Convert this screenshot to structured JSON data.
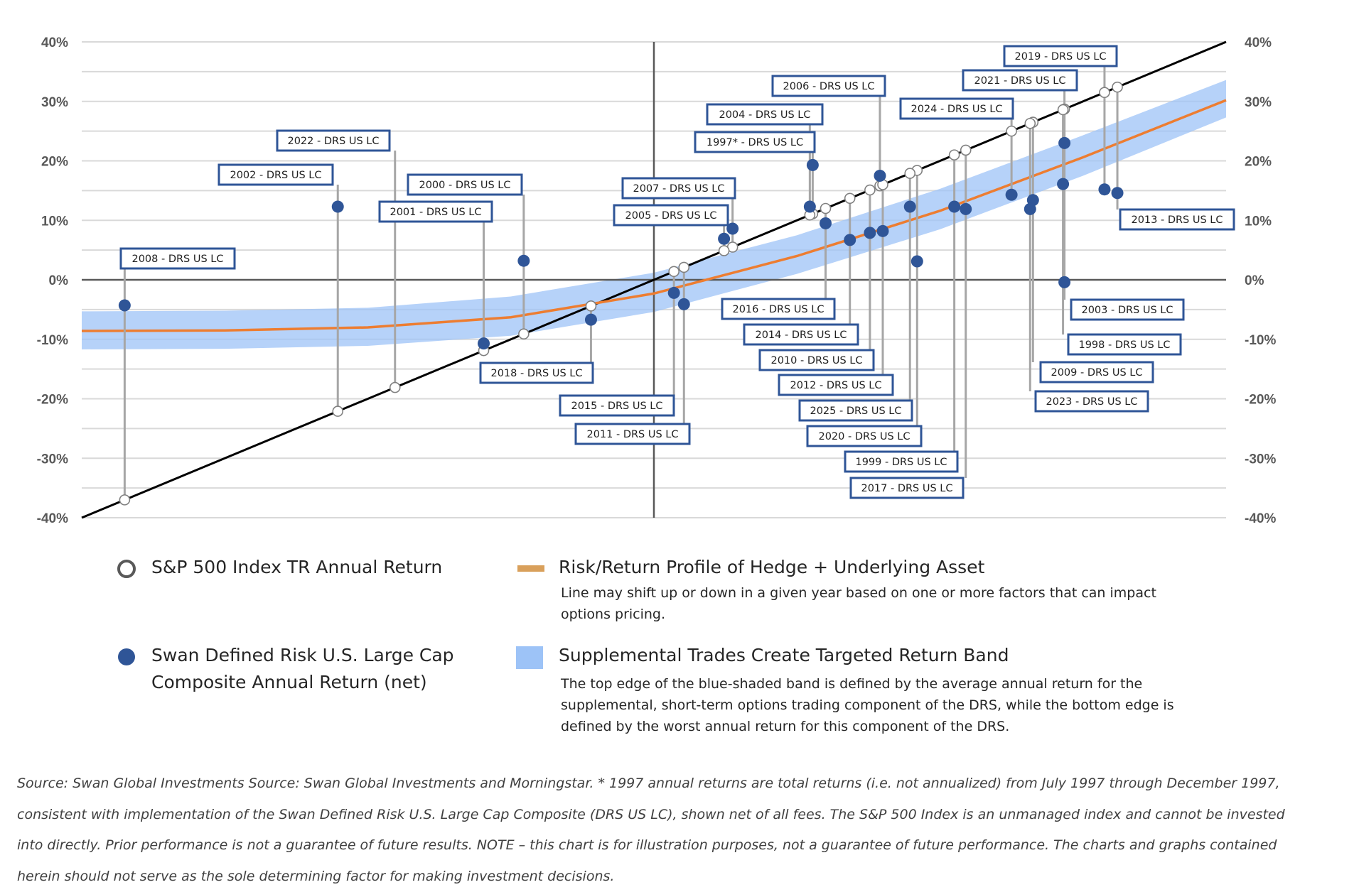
{
  "chart_data": {
    "type": "scatter",
    "xlim": [
      -40,
      40
    ],
    "ylim": [
      -40,
      40
    ],
    "y_ticks": [
      "40%",
      "30%",
      "20%",
      "10%",
      "0%",
      "-10%",
      "-20%",
      "-30%",
      "-40%"
    ],
    "grid": true,
    "legend_position": "bottom",
    "series": [
      {
        "name": "S&P 500 Index TR Annual Return"
      },
      {
        "name": "Swan Defined Risk U.S. Large Cap Composite Annual Return (net)"
      },
      {
        "name": "Risk/Return Profile of Hedge + Underlying Asset"
      },
      {
        "name": "Supplemental Trades Create Targeted Return Band"
      }
    ],
    "points": [
      {
        "label": "2008 - DRS US LC",
        "sp500": -37.0,
        "drs": -4.3
      },
      {
        "label": "2022 - DRS US LC",
        "sp500": -18.1,
        "drs": 12.3
      },
      {
        "label": "2002 - DRS US LC",
        "sp500": -22.1,
        "drs": 12.3
      },
      {
        "label": "2001 - DRS US LC",
        "sp500": -11.9,
        "drs": -10.7
      },
      {
        "label": "2000 - DRS US LC",
        "sp500": -9.1,
        "drs": 3.2
      },
      {
        "label": "2018 - DRS US LC",
        "sp500": -4.4,
        "drs": -6.7
      },
      {
        "label": "2015 - DRS US LC",
        "sp500": 1.4,
        "drs": -2.2
      },
      {
        "label": "2011 - DRS US LC",
        "sp500": 2.1,
        "drs": -4.1
      },
      {
        "label": "2007 - DRS US LC",
        "sp500": 5.5,
        "drs": 8.6
      },
      {
        "label": "2005 - DRS US LC",
        "sp500": 4.9,
        "drs": 6.9
      },
      {
        "label": "1997* - DRS US LC",
        "sp500": 11.1,
        "drs": 19.3
      },
      {
        "label": "2004 - DRS US LC",
        "sp500": 10.9,
        "drs": 12.3
      },
      {
        "label": "2016 - DRS US LC",
        "sp500": 12.0,
        "drs": 9.5
      },
      {
        "label": "2014 - DRS US LC",
        "sp500": 13.7,
        "drs": 6.7
      },
      {
        "label": "2010 - DRS US LC",
        "sp500": 15.1,
        "drs": 7.9
      },
      {
        "label": "2006 - DRS US LC",
        "sp500": 15.8,
        "drs": 17.5
      },
      {
        "label": "2012 - DRS US LC",
        "sp500": 16.0,
        "drs": 8.2
      },
      {
        "label": "2020 - DRS US LC",
        "sp500": 18.4,
        "drs": 3.1
      },
      {
        "label": "2025 - DRS US LC",
        "sp500": 17.9,
        "drs": 12.3
      },
      {
        "label": "1999 - DRS US LC",
        "sp500": 21.0,
        "drs": 12.3
      },
      {
        "label": "2017 - DRS US LC",
        "sp500": 21.8,
        "drs": 11.9
      },
      {
        "label": "2024 - DRS US LC",
        "sp500": 25.0,
        "drs": 14.3
      },
      {
        "label": "2009 - DRS US LC",
        "sp500": 26.5,
        "drs": 13.4
      },
      {
        "label": "2021 - DRS US LC",
        "sp500": 28.7,
        "drs": 23.0
      },
      {
        "label": "2023 - DRS US LC",
        "sp500": 26.3,
        "drs": 11.9
      },
      {
        "label": "2003 - DRS US LC",
        "sp500": 28.7,
        "drs": -0.4
      },
      {
        "label": "1998 - DRS US LC",
        "sp500": 28.6,
        "drs": 16.1
      },
      {
        "label": "2019 - DRS US LC",
        "sp500": 31.5,
        "drs": 15.2
      },
      {
        "label": "2013 - DRS US LC",
        "sp500": 32.4,
        "drs": 14.6
      }
    ],
    "profile_line": {
      "x": [
        -40,
        -30,
        -20,
        -10,
        0,
        10,
        20,
        30,
        40
      ],
      "y": [
        -8.6,
        -8.5,
        -8.0,
        -6.3,
        -2.3,
        4.0,
        11.6,
        20.6,
        30.2
      ]
    },
    "band": {
      "x": [
        -40,
        -30,
        -20,
        -10,
        0,
        10,
        20,
        30,
        40
      ],
      "upper": [
        -5.3,
        -5.2,
        -4.7,
        -2.8,
        1.2,
        7.5,
        15.3,
        24.3,
        33.6
      ],
      "lower": [
        -11.7,
        -11.6,
        -11.1,
        -9.4,
        -5.4,
        1.0,
        8.5,
        17.5,
        27.3
      ]
    }
  },
  "legend": {
    "sp500": "S&P 500 Index TR Annual Return",
    "drs_line1": "Swan Defined Risk U.S. Large Cap",
    "drs_line2": "Composite Annual Return (net)",
    "profile_title": "Risk/Return Profile of Hedge + Underlying Asset",
    "profile_desc_line1": "Line may shift up or down in a given year based on one or more factors  that can impact",
    "profile_desc_line2": "options pricing.",
    "band_title": "Supplemental Trades Create Targeted Return Band",
    "band_desc_line1": "The top edge of the blue-shaded band is defined by the average annual return for the",
    "band_desc_line2": "supplemental, short-term options trading component of the DRS, while the bottom edge is",
    "band_desc_line3": "defined by the worst annual return for this component of the DRS."
  },
  "footnote": "Source: Swan Global Investments Source: Swan Global Investments and Morningstar.  * 1997 annual returns are total returns (i.e. not annualized) from July 1997 through December 1997,  consistent with implementation of the Swan Defined Risk U.S. Large Cap Composite (DRS US LC), shown net of all fees. The S&P 500 Index is an unmanaged index and cannot be invested into directly. Prior performance is not a guarantee of future results. NOTE – this chart is for illustration purposes, not a guarantee of future performance. The charts and graphs contained herein should not serve as the sole determining factor for making investment decisions.",
  "colors": {
    "grid": "#d9d9d9",
    "axis": "#595959",
    "connector": "#a6a6a6",
    "diagonal": "#000000",
    "profile": "#ed7d31",
    "band": "#9dc3f7",
    "drs_dot": "#2f5597",
    "label_border": "#2f5597",
    "legend_profile": "#d9a05b"
  }
}
